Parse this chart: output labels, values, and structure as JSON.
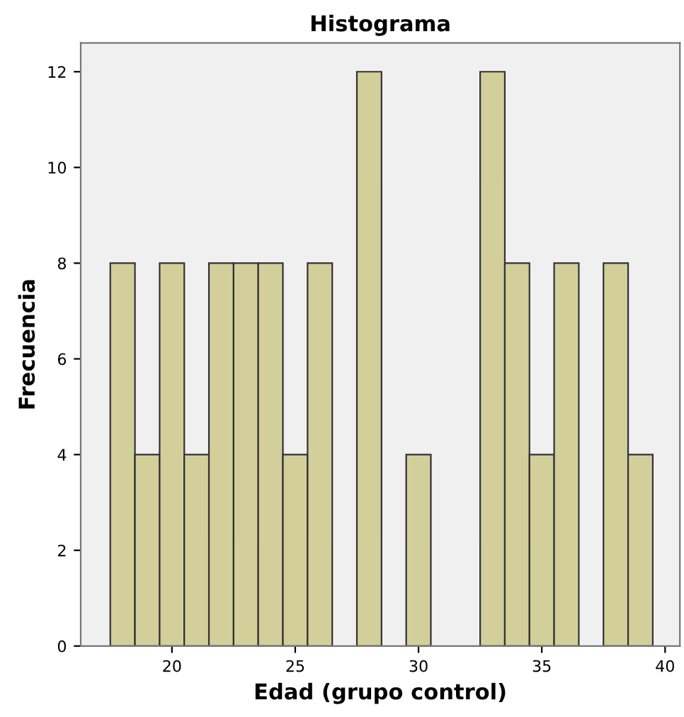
{
  "chart_data": {
    "type": "histogram",
    "title": "Histograma",
    "xlabel": "Edad (grupo control)",
    "ylabel": "Frecuencia",
    "bins": [
      17.5,
      18.5,
      19.5,
      20.5,
      21.5,
      22.5,
      23.5,
      24.5,
      25.5,
      26.5,
      27.5,
      28.5,
      29.5,
      30.5,
      31.5,
      32.5,
      33.5,
      34.5,
      35.5,
      36.5,
      37.5,
      38.5,
      39.5
    ],
    "values": [
      8,
      4,
      8,
      4,
      8,
      8,
      8,
      4,
      8,
      0,
      12,
      0,
      4,
      0,
      0,
      12,
      8,
      4,
      8,
      0,
      8,
      4
    ],
    "color": "#d3cf9b",
    "xlim": [
      16.3,
      40.6
    ],
    "xticks": [
      20,
      25,
      30,
      35,
      40
    ],
    "ylim": [
      0,
      12.6
    ],
    "yticks": [
      0,
      2,
      4,
      6,
      8,
      10,
      12
    ],
    "grid": false
  }
}
